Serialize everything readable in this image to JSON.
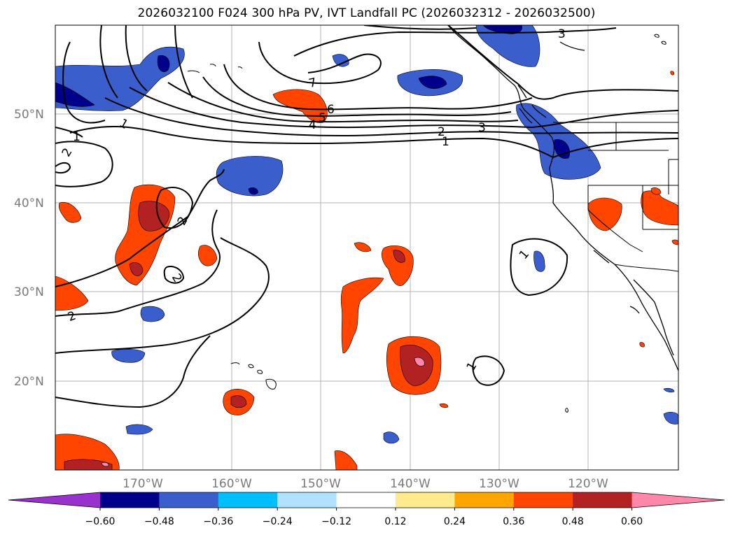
{
  "map": {
    "title": "2026032100 F024 300 hPa PV, IVT Landfall PC (2026032312 - 2026032500)",
    "lat_labels": [
      "50°N",
      "40°N",
      "30°N",
      "20°N"
    ],
    "lon_labels": [
      "170°W",
      "160°W",
      "150°W",
      "140°W",
      "130°W",
      "120°W"
    ],
    "contour_labels": [
      "7",
      "6",
      "5",
      "4",
      "3",
      "3",
      "2",
      "1",
      "1",
      "1",
      "2",
      "2",
      "2",
      "2",
      "1",
      "1"
    ]
  },
  "colorbar": {
    "ticks": [
      "−0.60",
      "−0.48",
      "−0.36",
      "−0.24",
      "−0.12",
      "0.12",
      "0.24",
      "0.36",
      "0.48",
      "0.60"
    ],
    "colors": [
      "#9932cc",
      "#00008b",
      "#3a5fcd",
      "#00bfff",
      "#b0e2ff",
      "#ffffff",
      "#ffeb8c",
      "#ffa500",
      "#ff4500",
      "#b22222",
      "#ff88aa"
    ]
  }
}
